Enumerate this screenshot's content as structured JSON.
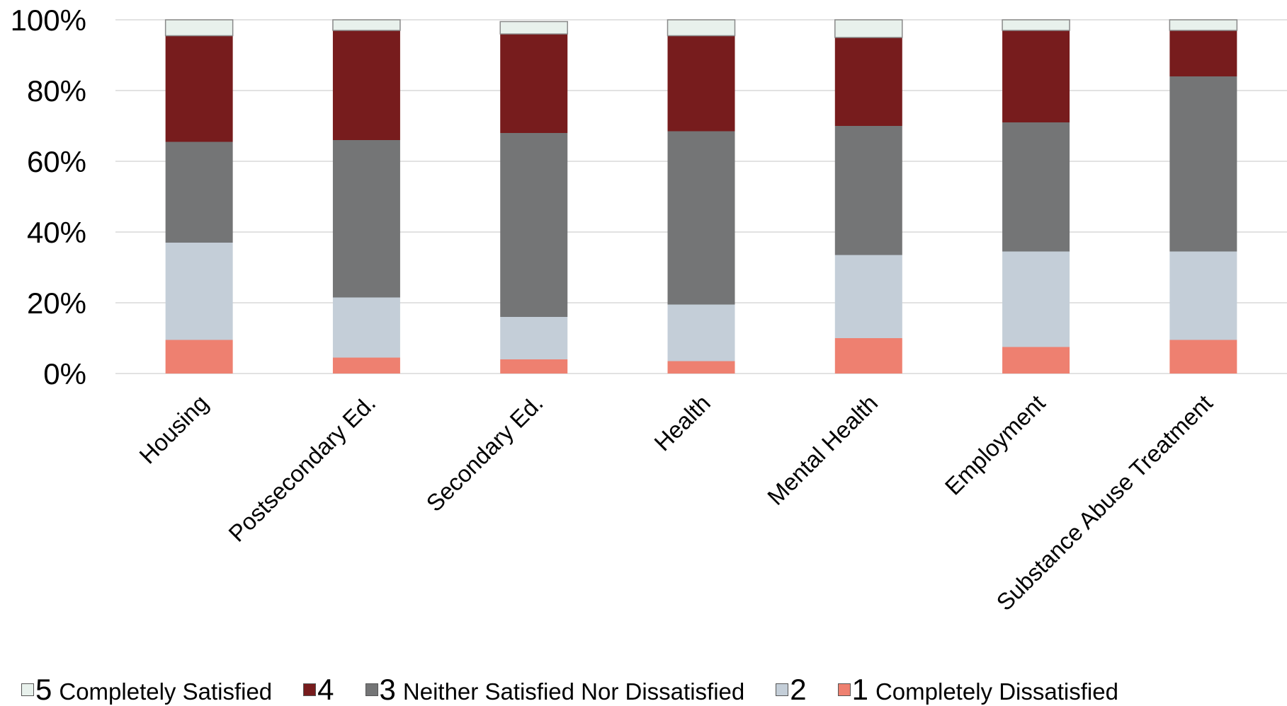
{
  "chart_data": {
    "type": "bar",
    "stacked": true,
    "percent": true,
    "categories": [
      "Housing",
      "Postsecondary Ed.",
      "Secondary Ed.",
      "Health",
      "Mental Health",
      "Employment",
      "Substance Abuse Treatment"
    ],
    "series": [
      {
        "name": "1 Completely Dissatisfied",
        "num": "1",
        "text": "Completely Dissatisfied",
        "color": "#ee8070",
        "values": [
          9.5,
          4.5,
          4,
          3.5,
          10,
          7.5,
          9.5
        ]
      },
      {
        "name": "2",
        "num": "2",
        "text": "",
        "color": "#c4ced8",
        "values": [
          27.5,
          17,
          12,
          16,
          23.5,
          27,
          25
        ]
      },
      {
        "name": "3 Neither Satisfied Nor Dissatisfied",
        "num": "3",
        "text": "Neither Satisfied Nor Dissatisfied",
        "color": "#747576",
        "values": [
          28.5,
          44.5,
          52,
          49,
          36.5,
          36.5,
          49.5
        ]
      },
      {
        "name": "4",
        "num": "4",
        "text": "",
        "color": "#771c1d",
        "values": [
          30,
          31,
          28,
          27,
          25,
          26,
          13
        ]
      },
      {
        "name": "5 Completely Satisfied",
        "num": "5",
        "text": "Completely Satisfied",
        "color": "#e8f1ec",
        "values": [
          4.5,
          3,
          3.5,
          4.5,
          5,
          3,
          3
        ]
      }
    ],
    "legend_order": [
      4,
      3,
      2,
      1,
      0
    ],
    "yticks": [
      "0%",
      "20%",
      "40%",
      "60%",
      "80%",
      "100%"
    ],
    "ylim": [
      0,
      100
    ],
    "grid": true,
    "legend_position": "bottom",
    "xlabel": "",
    "ylabel": "",
    "title": ""
  }
}
